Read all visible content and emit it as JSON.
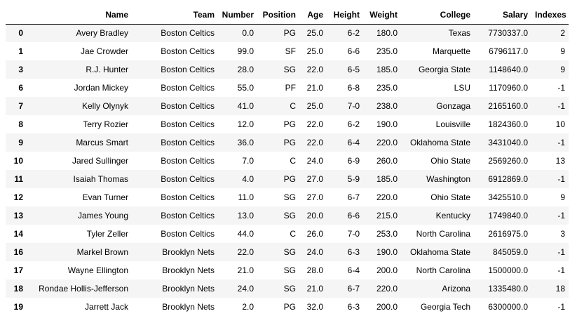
{
  "table": {
    "columns": [
      "",
      "Name",
      "Team",
      "Number",
      "Position",
      "Age",
      "Height",
      "Weight",
      "College",
      "Salary",
      "Indexes"
    ],
    "rows": [
      {
        "index": "0",
        "cells": [
          "Avery Bradley",
          "Boston Celtics",
          "0.0",
          "PG",
          "25.0",
          "6-2",
          "180.0",
          "Texas",
          "7730337.0",
          "2"
        ]
      },
      {
        "index": "1",
        "cells": [
          "Jae Crowder",
          "Boston Celtics",
          "99.0",
          "SF",
          "25.0",
          "6-6",
          "235.0",
          "Marquette",
          "6796117.0",
          "9"
        ]
      },
      {
        "index": "3",
        "cells": [
          "R.J. Hunter",
          "Boston Celtics",
          "28.0",
          "SG",
          "22.0",
          "6-5",
          "185.0",
          "Georgia State",
          "1148640.0",
          "9"
        ]
      },
      {
        "index": "6",
        "cells": [
          "Jordan Mickey",
          "Boston Celtics",
          "55.0",
          "PF",
          "21.0",
          "6-8",
          "235.0",
          "LSU",
          "1170960.0",
          "-1"
        ]
      },
      {
        "index": "7",
        "cells": [
          "Kelly Olynyk",
          "Boston Celtics",
          "41.0",
          "C",
          "25.0",
          "7-0",
          "238.0",
          "Gonzaga",
          "2165160.0",
          "-1"
        ]
      },
      {
        "index": "8",
        "cells": [
          "Terry Rozier",
          "Boston Celtics",
          "12.0",
          "PG",
          "22.0",
          "6-2",
          "190.0",
          "Louisville",
          "1824360.0",
          "10"
        ]
      },
      {
        "index": "9",
        "cells": [
          "Marcus Smart",
          "Boston Celtics",
          "36.0",
          "PG",
          "22.0",
          "6-4",
          "220.0",
          "Oklahoma State",
          "3431040.0",
          "-1"
        ]
      },
      {
        "index": "10",
        "cells": [
          "Jared Sullinger",
          "Boston Celtics",
          "7.0",
          "C",
          "24.0",
          "6-9",
          "260.0",
          "Ohio State",
          "2569260.0",
          "13"
        ]
      },
      {
        "index": "11",
        "cells": [
          "Isaiah Thomas",
          "Boston Celtics",
          "4.0",
          "PG",
          "27.0",
          "5-9",
          "185.0",
          "Washington",
          "6912869.0",
          "-1"
        ]
      },
      {
        "index": "12",
        "cells": [
          "Evan Turner",
          "Boston Celtics",
          "11.0",
          "SG",
          "27.0",
          "6-7",
          "220.0",
          "Ohio State",
          "3425510.0",
          "9"
        ]
      },
      {
        "index": "13",
        "cells": [
          "James Young",
          "Boston Celtics",
          "13.0",
          "SG",
          "20.0",
          "6-6",
          "215.0",
          "Kentucky",
          "1749840.0",
          "-1"
        ]
      },
      {
        "index": "14",
        "cells": [
          "Tyler Zeller",
          "Boston Celtics",
          "44.0",
          "C",
          "26.0",
          "7-0",
          "253.0",
          "North Carolina",
          "2616975.0",
          "3"
        ]
      },
      {
        "index": "16",
        "cells": [
          "Markel Brown",
          "Brooklyn Nets",
          "22.0",
          "SG",
          "24.0",
          "6-3",
          "190.0",
          "Oklahoma State",
          "845059.0",
          "-1"
        ]
      },
      {
        "index": "17",
        "cells": [
          "Wayne Ellington",
          "Brooklyn Nets",
          "21.0",
          "SG",
          "28.0",
          "6-4",
          "200.0",
          "North Carolina",
          "1500000.0",
          "-1"
        ]
      },
      {
        "index": "18",
        "cells": [
          "Rondae Hollis-Jefferson",
          "Brooklyn Nets",
          "24.0",
          "SG",
          "21.0",
          "6-7",
          "220.0",
          "Arizona",
          "1335480.0",
          "18"
        ]
      },
      {
        "index": "19",
        "cells": [
          "Jarrett Jack",
          "Brooklyn Nets",
          "2.0",
          "PG",
          "32.0",
          "6-3",
          "200.0",
          "Georgia Tech",
          "6300000.0",
          "-1"
        ]
      }
    ]
  }
}
